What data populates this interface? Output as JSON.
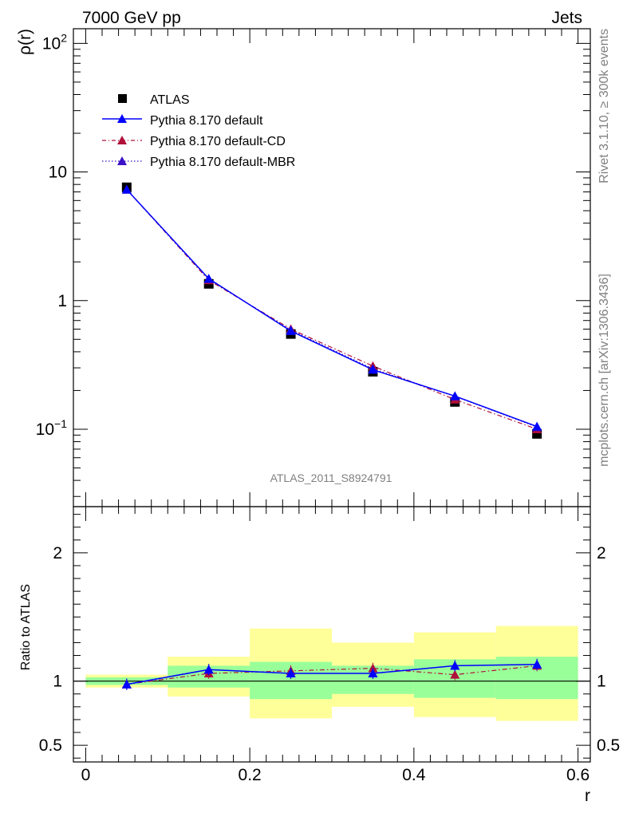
{
  "header": {
    "left": "7000 GeV pp",
    "right": "Jets"
  },
  "side_text": {
    "top": "Rivet 3.1.10, ≥ 300k events",
    "bottom": "mcplots.cern.ch [arXiv:1306.3436]"
  },
  "analysis_label": "ATLAS_2011_S8924791",
  "colors": {
    "atlas": "#000000",
    "default": "#0000ff",
    "cd": "#b0103a",
    "mbr": "#3b10c8",
    "band_inner": "#99ff99",
    "band_outer": "#ffff99"
  },
  "chart_data": [
    {
      "type": "line",
      "ylabel": "ρ(r)",
      "yscale": "log",
      "ylim": [
        0.025,
        130
      ],
      "xlim": [
        -0.015,
        0.615
      ],
      "y_ticks": [
        {
          "value": 0.1,
          "base": "10",
          "exp": "−1"
        },
        {
          "value": 1,
          "label": "1"
        },
        {
          "value": 10,
          "label": "10"
        },
        {
          "value": 100,
          "base": "10",
          "exp": "2"
        }
      ],
      "x": [
        0.05,
        0.15,
        0.25,
        0.35,
        0.45,
        0.55
      ],
      "series": [
        {
          "name": "ATLAS",
          "marker": "square",
          "values": [
            7.6,
            1.35,
            0.55,
            0.28,
            0.163,
            0.092
          ]
        },
        {
          "name": "Pythia 8.170 default",
          "style": "solid",
          "marker": "triangle",
          "values": [
            7.3,
            1.48,
            0.58,
            0.29,
            0.181,
            0.105
          ]
        },
        {
          "name": "Pythia 8.170 default-CD",
          "style": "dashdot",
          "marker": "triangle",
          "values": [
            7.3,
            1.44,
            0.6,
            0.31,
            0.17,
            0.1
          ]
        },
        {
          "name": "Pythia 8.170 default-MBR",
          "style": "dotted",
          "marker": "triangle",
          "values": [
            7.3,
            1.47,
            0.59,
            0.295,
            0.18,
            0.104
          ]
        }
      ],
      "legend": "top-left"
    },
    {
      "type": "line",
      "xlabel": "r",
      "ylabel": "Ratio to ATLAS",
      "ylim": [
        0.37,
        2.36
      ],
      "xlim": [
        -0.015,
        0.615
      ],
      "x_ticks": [
        {
          "value": 0,
          "label": "0"
        },
        {
          "value": 0.2,
          "label": "0.2"
        },
        {
          "value": 0.4,
          "label": "0.4"
        },
        {
          "value": 0.6,
          "label": "0.6"
        }
      ],
      "y_ticks": [
        {
          "value": 0.5,
          "label": "0.5"
        },
        {
          "value": 1,
          "label": "1"
        },
        {
          "value": 2,
          "label": "2"
        }
      ],
      "bins": [
        [
          0,
          0.1
        ],
        [
          0.1,
          0.2
        ],
        [
          0.2,
          0.3
        ],
        [
          0.3,
          0.4
        ],
        [
          0.4,
          0.5
        ],
        [
          0.5,
          0.6
        ]
      ],
      "band_inner": [
        [
          0.97,
          1.03
        ],
        [
          0.95,
          1.12
        ],
        [
          0.86,
          1.15
        ],
        [
          0.9,
          1.12
        ],
        [
          0.87,
          1.17
        ],
        [
          0.86,
          1.19
        ]
      ],
      "band_outer": [
        [
          0.95,
          1.05
        ],
        [
          0.88,
          1.19
        ],
        [
          0.71,
          1.41
        ],
        [
          0.8,
          1.3
        ],
        [
          0.72,
          1.38
        ],
        [
          0.69,
          1.43
        ]
      ],
      "x": [
        0.05,
        0.15,
        0.25,
        0.35,
        0.45,
        0.55
      ],
      "series": [
        {
          "name": "Pythia 8.170 default",
          "values": [
            0.975,
            1.09,
            1.06,
            1.06,
            1.12,
            1.13
          ]
        },
        {
          "name": "Pythia 8.170 default-CD",
          "values": [
            0.975,
            1.06,
            1.08,
            1.1,
            1.05,
            1.12
          ]
        },
        {
          "name": "Pythia 8.170 default-MBR",
          "values": [
            0.975,
            1.09,
            1.06,
            1.06,
            1.12,
            1.13
          ]
        }
      ]
    }
  ]
}
